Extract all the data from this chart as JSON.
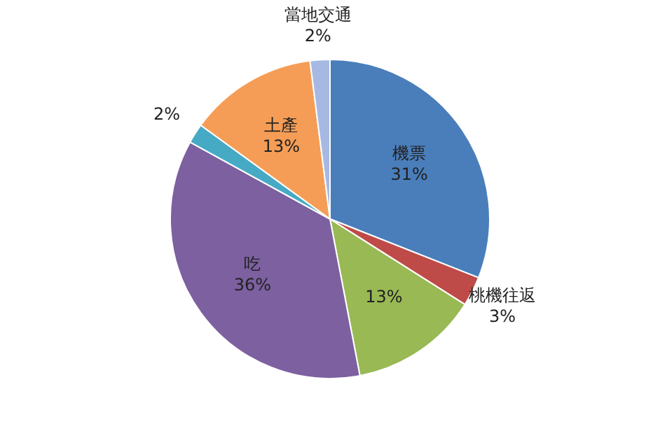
{
  "chart_data": {
    "type": "pie",
    "categories": [
      "機票",
      "桃機往返",
      null,
      "吃",
      null,
      "土產",
      "當地交通"
    ],
    "values": [
      31,
      3,
      13,
      36,
      2,
      13,
      2
    ],
    "colors": [
      "#4a7ebb",
      "#be4b48",
      "#98b954",
      "#7d60a0",
      "#46aac5",
      "#f59d56",
      "#a7b9e3"
    ],
    "value_labels": [
      "31%",
      "3%",
      "13%",
      "36%",
      "2%",
      "13%",
      "2%"
    ],
    "legend": false
  }
}
